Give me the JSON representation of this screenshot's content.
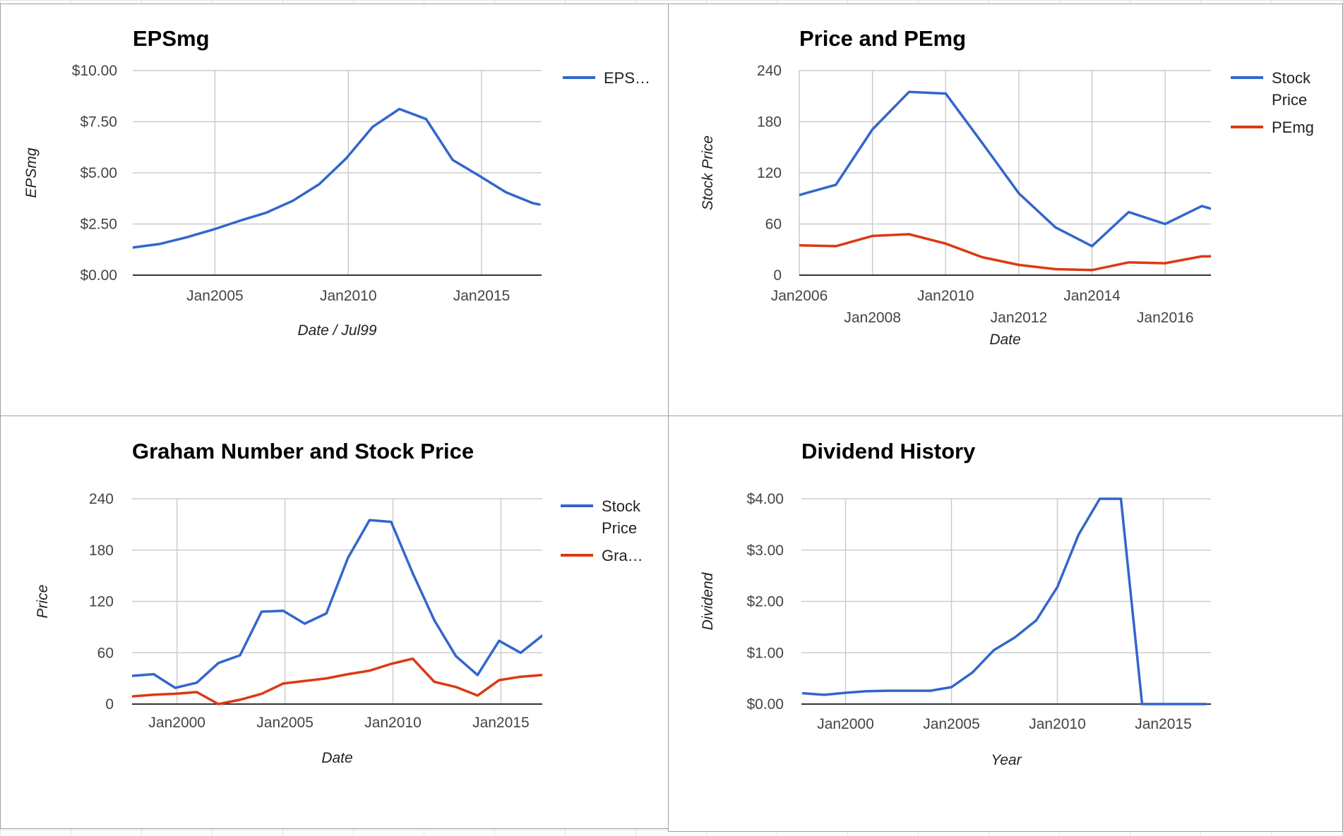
{
  "chart_data": [
    {
      "type": "line",
      "title": "EPSmg",
      "xlabel": "Date / Jul99",
      "ylabel": "EPSmg",
      "x_ticks": [
        "Jan2005",
        "Jan2010",
        "Jan2015"
      ],
      "y_ticks": [
        "$0.00",
        "$2.50",
        "$5.00",
        "$7.50",
        "$10.00"
      ],
      "ylim": [
        0,
        10
      ],
      "grid": true,
      "legend_position": "right",
      "x": [
        "2001-12",
        "2002-12",
        "2003-12",
        "2004-12",
        "2005-12",
        "2006-12",
        "2007-12",
        "2008-12",
        "2009-12",
        "2010-12",
        "2011-12",
        "2012-12",
        "2013-12",
        "2014-12",
        "2015-12",
        "2016-12",
        "2017-03"
      ],
      "series": [
        {
          "name": "EPS…",
          "color": "#3366cc",
          "values": [
            1.35,
            1.52,
            1.84,
            2.22,
            2.65,
            3.05,
            3.63,
            4.45,
            5.7,
            7.25,
            8.12,
            7.63,
            5.63,
            4.85,
            4.05,
            3.52,
            3.45
          ]
        }
      ]
    },
    {
      "type": "line",
      "title": "Price and PEmg",
      "xlabel": "Date",
      "ylabel": "Stock Price",
      "x_ticks": [
        "Jan2006",
        "Jan2008",
        "Jan2010",
        "Jan2012",
        "Jan2014",
        "Jan2016"
      ],
      "y_ticks": [
        "0",
        "60",
        "120",
        "180",
        "240"
      ],
      "ylim": [
        0,
        240
      ],
      "grid": true,
      "legend_position": "right",
      "x": [
        "2006-01",
        "2007-01",
        "2008-01",
        "2009-01",
        "2010-01",
        "2011-01",
        "2012-01",
        "2013-01",
        "2014-01",
        "2015-01",
        "2016-01",
        "2017-01",
        "2017-04"
      ],
      "series": [
        {
          "name": "Stock Price",
          "legend_lines": [
            "Stock",
            "Price"
          ],
          "color": "#3366cc",
          "values": [
            94,
            106,
            171,
            215,
            213,
            155,
            96,
            56,
            34,
            74,
            60,
            81,
            78
          ]
        },
        {
          "name": "PEmg",
          "color": "#dc3912",
          "values": [
            35,
            34,
            46,
            48,
            37,
            21,
            12,
            7,
            6,
            15,
            14,
            22,
            22
          ]
        }
      ]
    },
    {
      "type": "line",
      "title": "Graham Number and Stock Price",
      "xlabel": "Date",
      "ylabel": "Price",
      "x_ticks": [
        "Jan2000",
        "Jan2005",
        "Jan2010",
        "Jan2015"
      ],
      "y_ticks": [
        "0",
        "60",
        "120",
        "180",
        "240"
      ],
      "ylim": [
        0,
        240
      ],
      "grid": true,
      "legend_position": "right",
      "x": [
        "1997-12",
        "1998-12",
        "1999-12",
        "2000-12",
        "2001-12",
        "2002-12",
        "2003-12",
        "2004-12",
        "2005-12",
        "2006-12",
        "2007-12",
        "2008-12",
        "2009-12",
        "2010-12",
        "2011-12",
        "2012-12",
        "2013-12",
        "2014-12",
        "2015-12",
        "2016-12"
      ],
      "series": [
        {
          "name": "Stock Price",
          "legend_lines": [
            "Stock",
            "Price"
          ],
          "color": "#3366cc",
          "values": [
            33,
            35,
            19,
            25,
            48,
            57,
            108,
            109,
            94,
            106,
            171,
            215,
            213,
            153,
            98,
            56,
            34,
            74,
            60,
            80
          ]
        },
        {
          "name": "Gra…",
          "color": "#dc3912",
          "values": [
            9,
            11,
            12,
            14,
            0,
            5,
            12,
            24,
            27,
            30,
            35,
            39,
            47,
            53,
            26,
            20,
            10,
            28,
            32,
            34
          ]
        }
      ]
    },
    {
      "type": "line",
      "title": "Dividend History",
      "xlabel": "Year",
      "ylabel": "Dividend",
      "x_ticks": [
        "Jan2000",
        "Jan2005",
        "Jan2010",
        "Jan2015"
      ],
      "y_ticks": [
        "$0.00",
        "$1.00",
        "$2.00",
        "$3.00",
        "$4.00"
      ],
      "ylim": [
        0,
        4
      ],
      "grid": true,
      "legend_position": "none",
      "x": [
        "1998-01",
        "1999-01",
        "2000-01",
        "2001-01",
        "2002-01",
        "2003-01",
        "2004-01",
        "2005-01",
        "2006-01",
        "2007-01",
        "2008-01",
        "2009-01",
        "2010-01",
        "2011-01",
        "2012-01",
        "2013-01",
        "2014-01",
        "2015-01",
        "2016-01",
        "2017-01"
      ],
      "series": [
        {
          "name": "",
          "color": "#3366cc",
          "values": [
            0.21,
            0.18,
            0.22,
            0.25,
            0.26,
            0.26,
            0.26,
            0.33,
            0.62,
            1.05,
            1.3,
            1.63,
            2.28,
            3.3,
            4.0,
            4.0,
            0.0,
            0.0,
            0.0,
            0.0
          ]
        }
      ]
    }
  ]
}
